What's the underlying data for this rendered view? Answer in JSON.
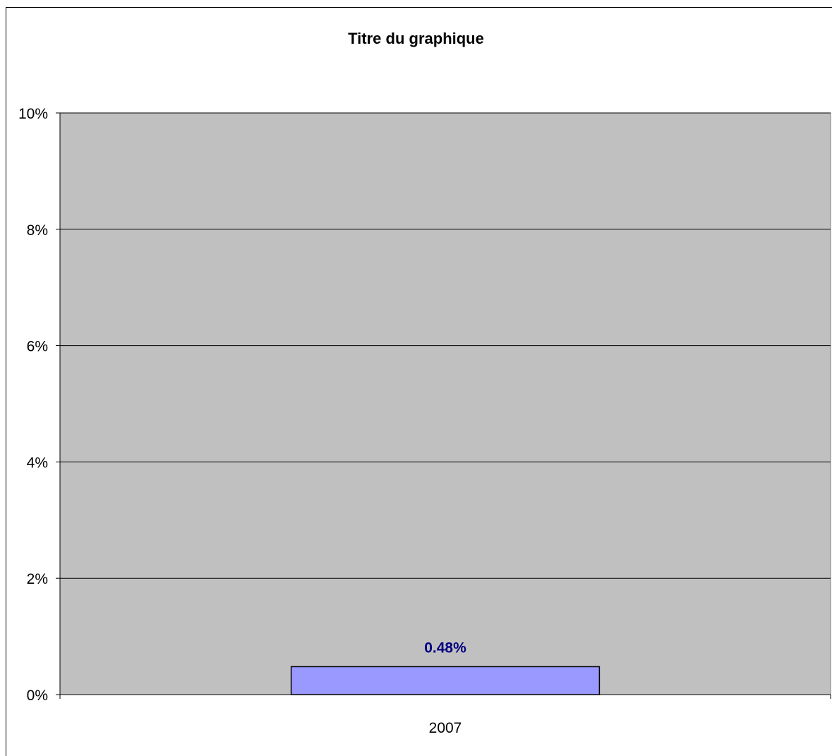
{
  "chart_data": {
    "type": "bar",
    "title": "Titre du graphique",
    "categories": [
      "2007"
    ],
    "series": [
      {
        "values": [
          0.48
        ]
      }
    ],
    "data_labels": [
      "0.48%"
    ],
    "ylim": [
      0,
      10
    ],
    "yticks": [
      0,
      2,
      4,
      6,
      8,
      10
    ],
    "ytick_labels": [
      "0%",
      "2%",
      "4%",
      "6%",
      "8%",
      "10%"
    ],
    "xlabel": "",
    "ylabel": "",
    "grid": true,
    "legend": "none",
    "colors": {
      "plot_area": "#c0c0c0",
      "bar": "#9999ff",
      "data_label": "#000080",
      "gridline": "#000000"
    }
  }
}
